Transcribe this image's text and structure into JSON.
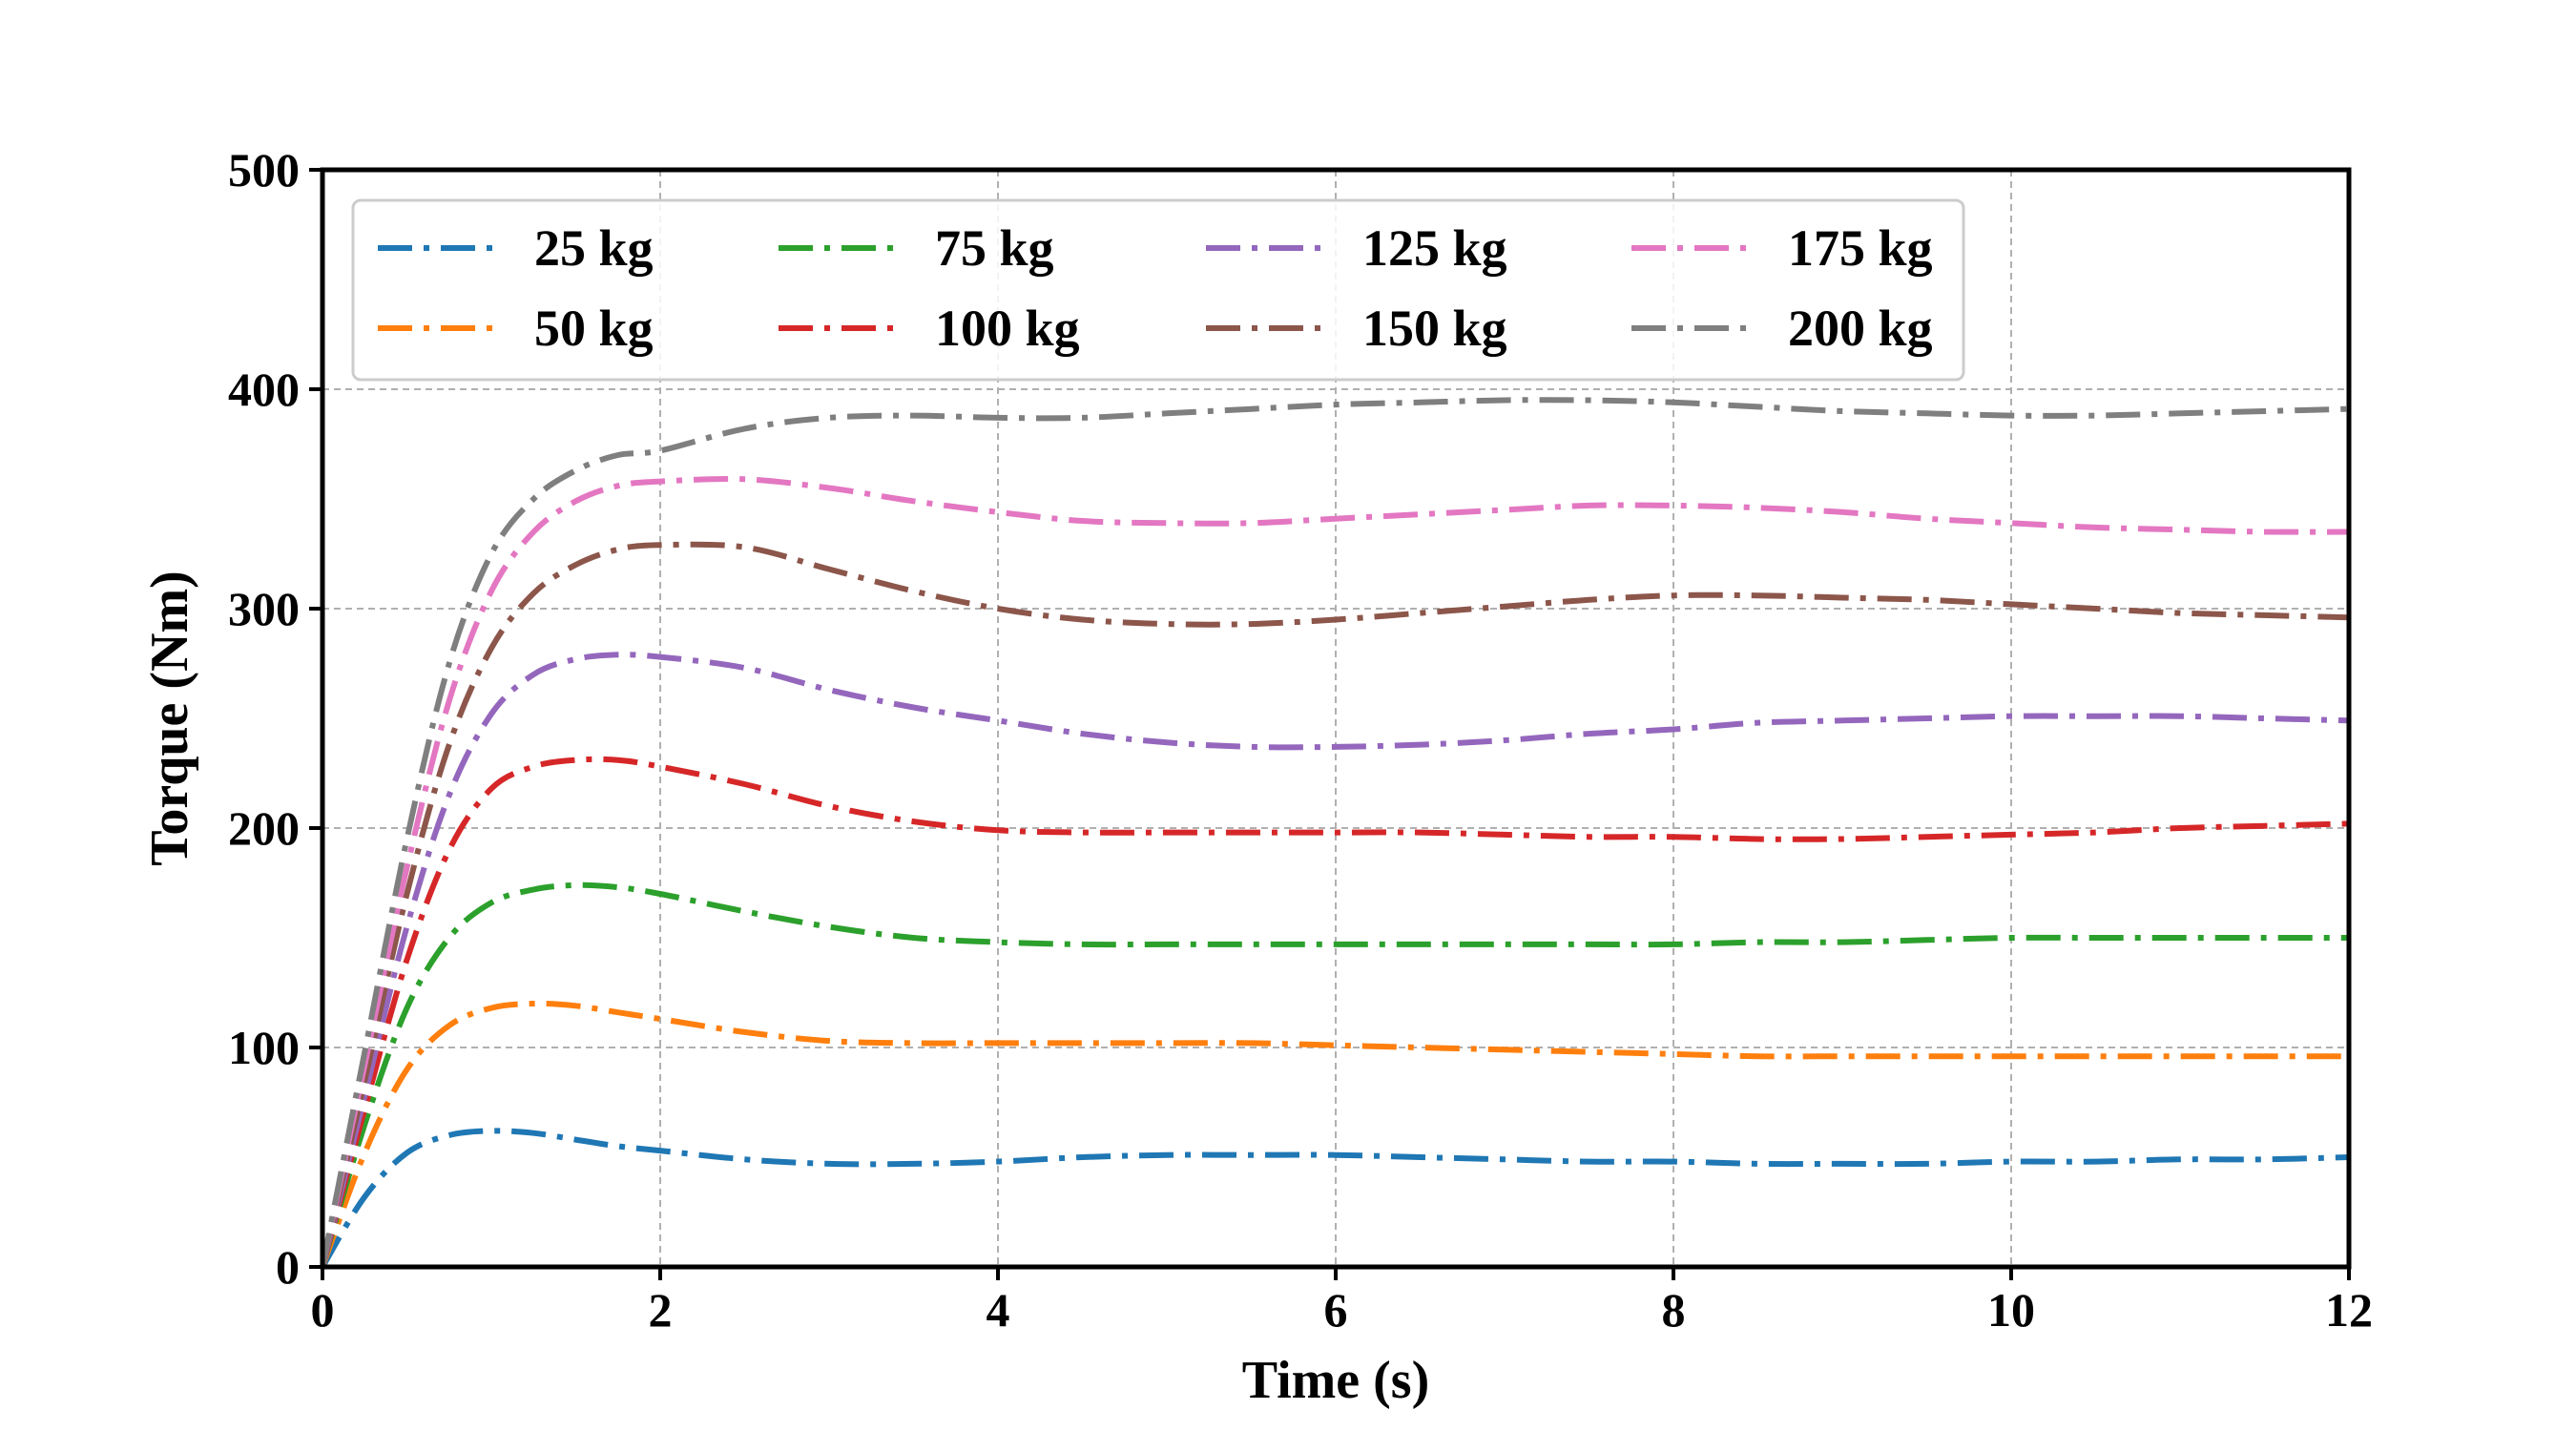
{
  "chart_data": {
    "type": "line",
    "xlabel": "Time (s)",
    "ylabel": "Torque (Nm)",
    "xlim": [
      0,
      12
    ],
    "ylim": [
      0,
      500
    ],
    "xticks": [
      "0",
      "2",
      "4",
      "6",
      "8",
      "10",
      "12"
    ],
    "yticks": [
      "0",
      "100",
      "200",
      "300",
      "400",
      "500"
    ],
    "grid": true,
    "legend_placement": "upper-left",
    "legend_columns": 4,
    "line_style": "dash-dot",
    "x": [
      0,
      0.25,
      0.5,
      0.75,
      1,
      1.25,
      1.5,
      1.75,
      2,
      2.5,
      3,
      3.5,
      4,
      4.5,
      5,
      5.5,
      6,
      6.5,
      7,
      7.5,
      8,
      8.5,
      9,
      9.5,
      10,
      10.5,
      11,
      11.5,
      12
    ],
    "series": [
      {
        "name": "25 kg",
        "color": "#1f77b4",
        "values": [
          0,
          32,
          52,
          60,
          62,
          61,
          58,
          55,
          53,
          49,
          47,
          47,
          48,
          50,
          51,
          51,
          51,
          50,
          49,
          48,
          48,
          47,
          47,
          47,
          48,
          48,
          49,
          49,
          50
        ]
      },
      {
        "name": "50 kg",
        "color": "#ff7f0e",
        "values": [
          0,
          52,
          90,
          110,
          118,
          120,
          119,
          116,
          113,
          107,
          103,
          102,
          102,
          102,
          102,
          102,
          101,
          100,
          99,
          98,
          97,
          96,
          96,
          96,
          96,
          96,
          96,
          96,
          96
        ]
      },
      {
        "name": "75 kg",
        "color": "#2ca02c",
        "values": [
          0,
          65,
          118,
          150,
          166,
          172,
          174,
          173,
          170,
          162,
          155,
          150,
          148,
          147,
          147,
          147,
          147,
          147,
          147,
          147,
          147,
          148,
          148,
          149,
          150,
          150,
          150,
          150,
          150
        ]
      },
      {
        "name": "100 kg",
        "color": "#d62728",
        "values": [
          0,
          72,
          140,
          190,
          218,
          228,
          231,
          231,
          228,
          220,
          210,
          203,
          199,
          198,
          198,
          198,
          198,
          198,
          197,
          196,
          196,
          195,
          195,
          196,
          197,
          198,
          200,
          201,
          202
        ]
      },
      {
        "name": "125 kg",
        "color": "#9467bd",
        "values": [
          0,
          78,
          155,
          215,
          252,
          270,
          277,
          279,
          278,
          273,
          263,
          255,
          249,
          243,
          239,
          237,
          237,
          238,
          240,
          243,
          245,
          248,
          249,
          250,
          251,
          251,
          251,
          250,
          249
        ]
      },
      {
        "name": "150 kg",
        "color": "#8c564b",
        "values": [
          0,
          85,
          170,
          238,
          282,
          307,
          320,
          327,
          329,
          328,
          318,
          308,
          300,
          295,
          293,
          293,
          295,
          298,
          301,
          304,
          306,
          306,
          305,
          304,
          302,
          300,
          298,
          297,
          296
        ]
      },
      {
        "name": "175 kg",
        "color": "#e377c2",
        "values": [
          0,
          92,
          182,
          258,
          308,
          335,
          349,
          356,
          358,
          359,
          355,
          349,
          344,
          340,
          339,
          339,
          341,
          343,
          345,
          347,
          347,
          346,
          344,
          341,
          339,
          337,
          336,
          335,
          335
        ]
      },
      {
        "name": "200 kg",
        "color": "#7f7f7f",
        "values": [
          0,
          98,
          195,
          275,
          325,
          350,
          363,
          370,
          372,
          382,
          387,
          388,
          387,
          387,
          389,
          391,
          393,
          394,
          395,
          395,
          394,
          392,
          390,
          389,
          388,
          388,
          389,
          390,
          391
        ]
      }
    ]
  }
}
